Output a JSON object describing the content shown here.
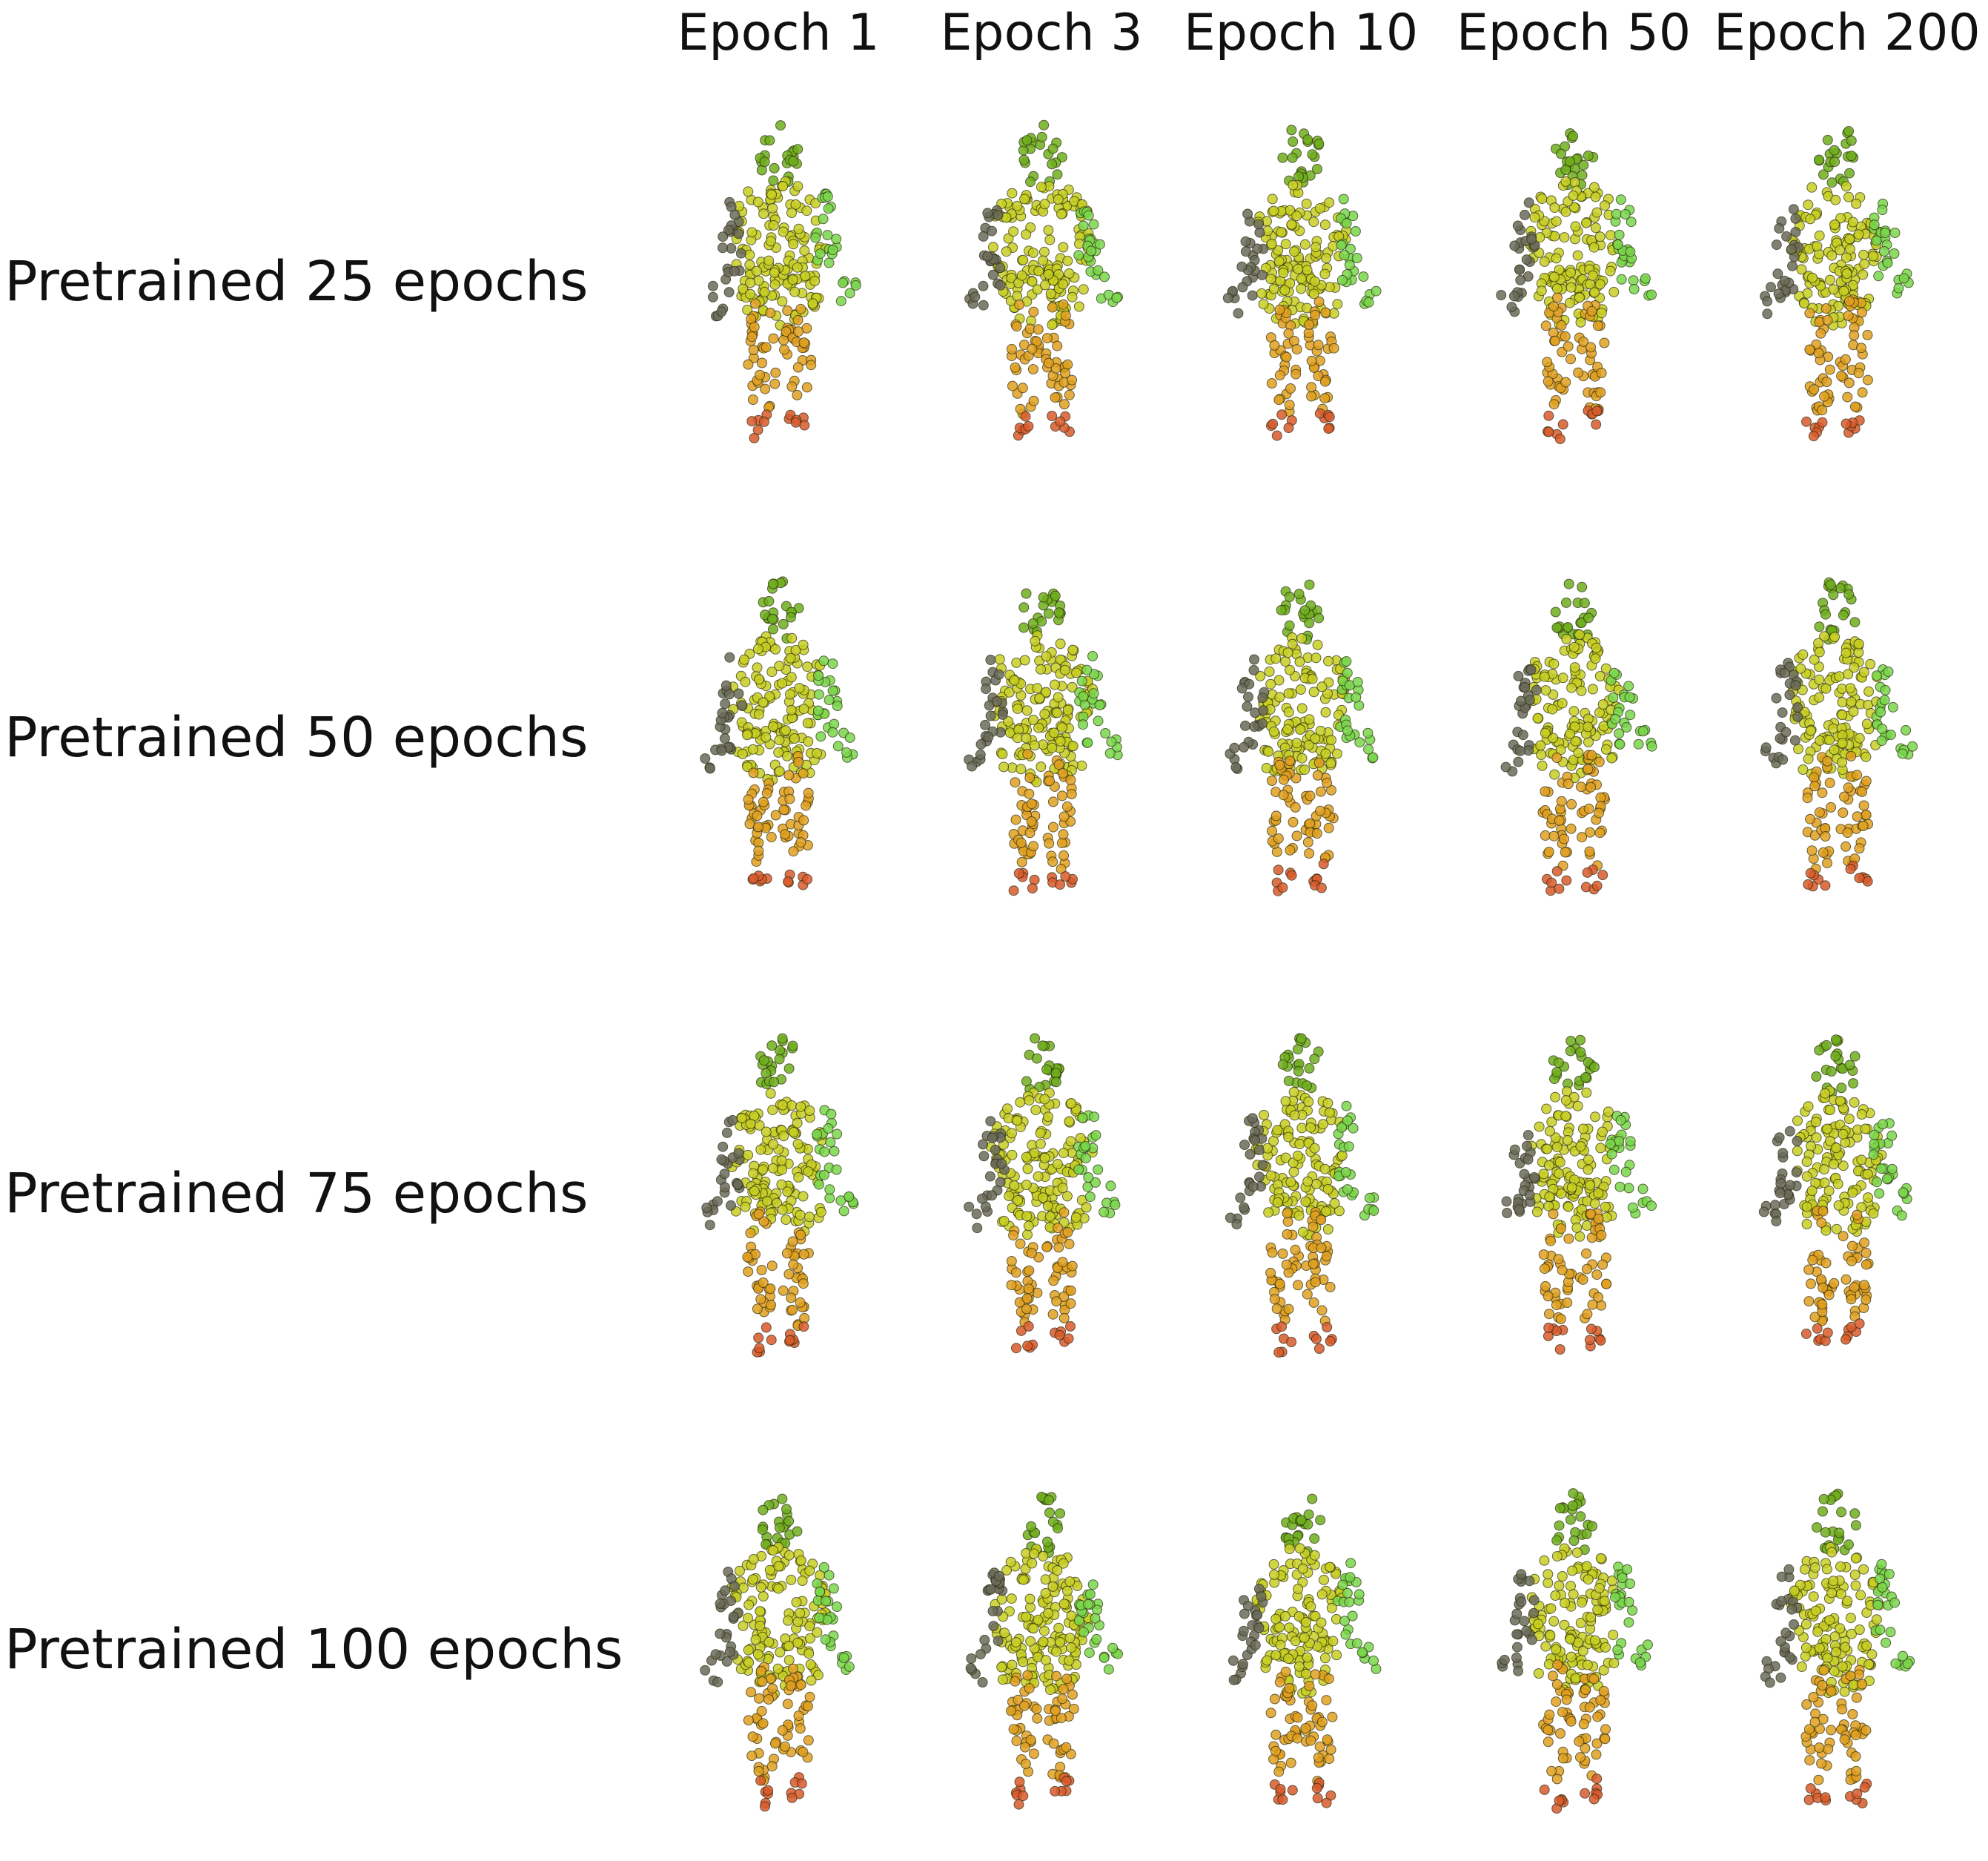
{
  "columns": [
    "Epoch 1",
    "Epoch 3",
    "Epoch 10",
    "Epoch 50",
    "Epoch 200"
  ],
  "rows": [
    "Pretrained 25 epochs",
    "Pretrained 50 epochs",
    "Pretrained 75 epochs",
    "Pretrained 100 epochs"
  ],
  "colors": {
    "head": "#6fae1c",
    "torso": "#c8cf22",
    "left_arm": "#6b6b5a",
    "right_arm": "#79d64a",
    "legs": "#e0a020",
    "feet": "#d85a2c",
    "outline": "#2a2a10"
  }
}
